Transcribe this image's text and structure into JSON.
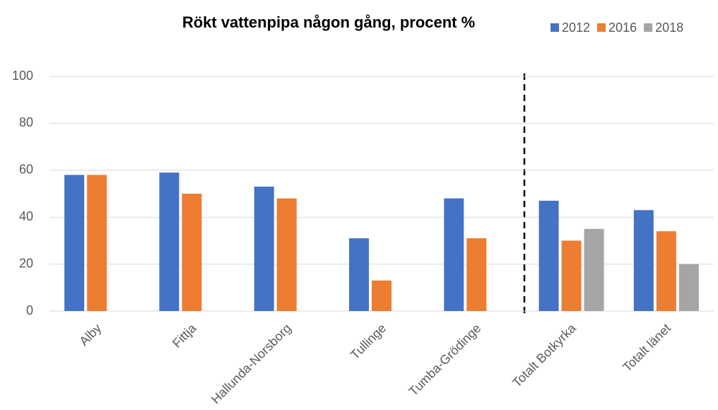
{
  "chart_data": {
    "type": "bar",
    "title": "Rökt vattenpipa någon gång, procent %",
    "categories": [
      "Alby",
      "Fittja",
      "Hallunda-Norsborg",
      "Tullinge",
      "Tumba-Grödinge",
      "Totalt Botkyrka",
      "Totalt länet"
    ],
    "series": [
      {
        "name": "2012",
        "color": "#4472c4",
        "values": [
          58,
          59,
          53,
          31,
          48,
          47,
          43
        ]
      },
      {
        "name": "2016",
        "color": "#ed7d31",
        "values": [
          58,
          50,
          48,
          13,
          31,
          30,
          34
        ]
      },
      {
        "name": "2018",
        "color": "#a5a5a5",
        "values": [
          null,
          null,
          null,
          null,
          null,
          35,
          20
        ]
      }
    ],
    "ylim": [
      0,
      100
    ],
    "yticks": [
      0,
      20,
      40,
      60,
      80,
      100
    ],
    "grid": true,
    "legend": "top-right"
  }
}
